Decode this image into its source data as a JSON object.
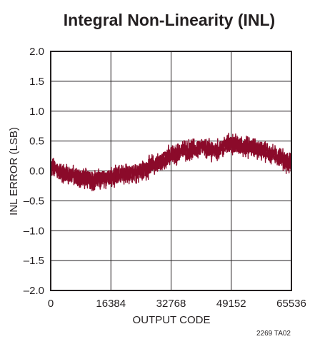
{
  "chart_data": {
    "type": "line",
    "title": "Integral Non-Linearity (INL)",
    "xlabel": "OUTPUT CODE",
    "ylabel": "INL ERROR (LSB)",
    "xlim": [
      0,
      65536
    ],
    "ylim": [
      -2.0,
      2.0
    ],
    "x_ticks": [
      0,
      16384,
      32768,
      49152,
      65536
    ],
    "x_tick_labels": [
      "0",
      "16384",
      "32768",
      "49152",
      "65536"
    ],
    "y_ticks": [
      2.0,
      1.5,
      1.0,
      0.5,
      0.0,
      -0.5,
      -1.0,
      -1.5,
      -2.0
    ],
    "y_tick_labels": [
      "2.0",
      "1.5",
      "1.0",
      "0.5",
      "0.0",
      "–0.5",
      "–1.0",
      "–1.5",
      "–2.0"
    ],
    "grid": true,
    "series": [
      {
        "color": "#8b0a2a",
        "band_width": 0.28,
        "x": [
          0,
          4096,
          8192,
          12288,
          16384,
          20480,
          24576,
          28672,
          32768,
          36864,
          40960,
          45056,
          49152,
          53248,
          57344,
          61440,
          65536
        ],
        "y": [
          0.05,
          -0.05,
          -0.12,
          -0.15,
          -0.12,
          -0.05,
          0.0,
          0.12,
          0.25,
          0.35,
          0.38,
          0.35,
          0.45,
          0.4,
          0.35,
          0.25,
          0.12
        ]
      }
    ]
  },
  "footnote": "2269 TA02"
}
